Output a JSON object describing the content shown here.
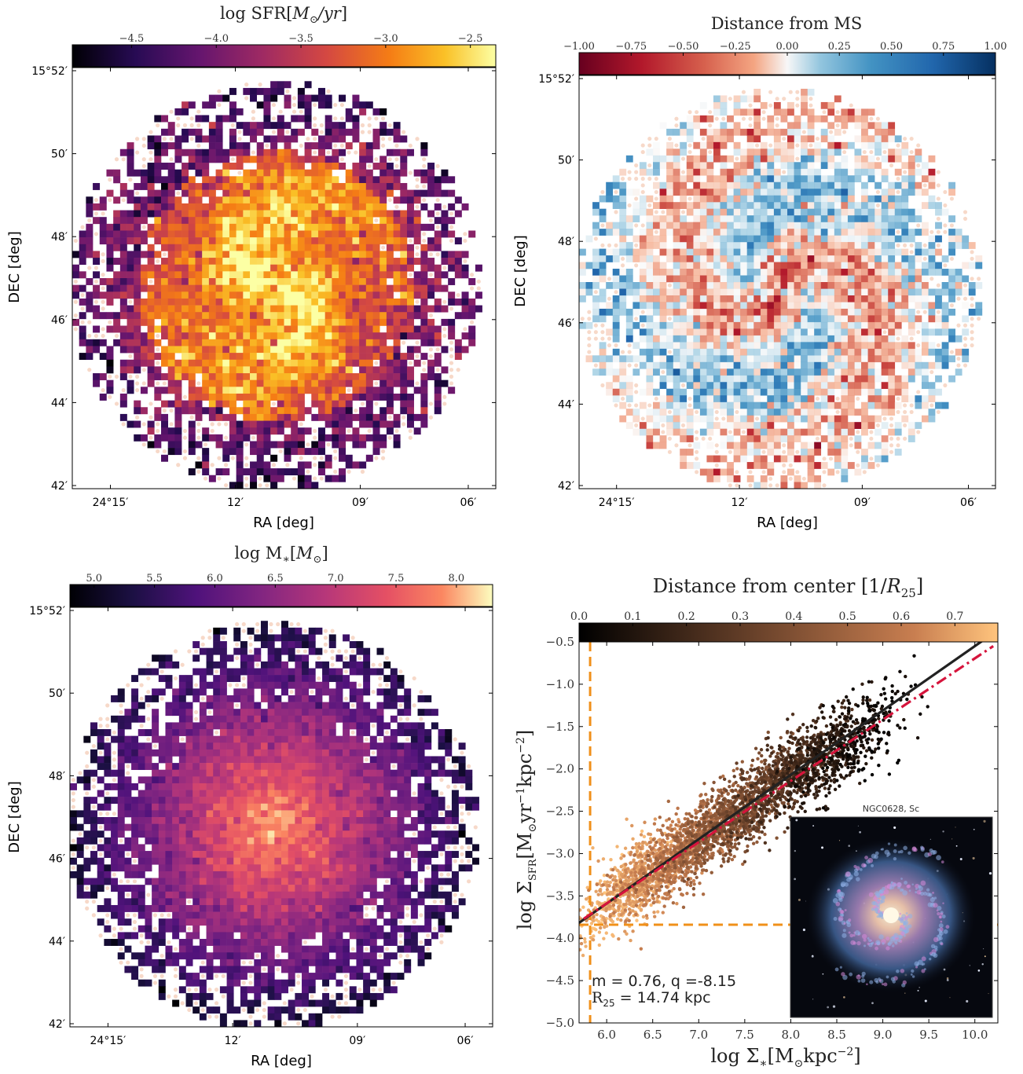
{
  "chart_data": [
    {
      "type": "heatmap",
      "title": "log SFR[M⊙/yr]",
      "xlabel": "RA [deg]",
      "ylabel": "DEC [deg]",
      "x_ticks": [
        "24°15′",
        "12′",
        "09′",
        "06′"
      ],
      "y_ticks": [
        "15°52′",
        "50′",
        "48′",
        "46′",
        "44′",
        "42′"
      ],
      "colorbar": {
        "colormap": "inferno",
        "range": [
          -4.85,
          -2.35
        ],
        "ticks": [
          "−4.5",
          "−4.0",
          "−3.5",
          "−3.0",
          "−2.5"
        ]
      }
    },
    {
      "type": "heatmap",
      "title": "Distance from MS",
      "xlabel": "RA [deg]",
      "ylabel": "DEC [deg]",
      "x_ticks": [
        "24°15′",
        "12′",
        "09′",
        "06′"
      ],
      "y_ticks": [
        "15°52′",
        "50′",
        "48′",
        "46′",
        "44′",
        "42′"
      ],
      "colorbar": {
        "colormap": "RdBu",
        "range": [
          -1.0,
          1.0
        ],
        "ticks": [
          "−1.00",
          "−0.75",
          "−0.50",
          "−0.25",
          "0.00",
          "0.25",
          "0.50",
          "0.75",
          "1.00"
        ]
      }
    },
    {
      "type": "heatmap",
      "title": "log M∗[M⊙]",
      "xlabel": "RA [deg]",
      "ylabel": "DEC [deg]",
      "x_ticks": [
        "24°15′",
        "12′",
        "09′",
        "06′"
      ],
      "y_ticks": [
        "15°52′",
        "50′",
        "48′",
        "46′",
        "44′",
        "42′"
      ],
      "colorbar": {
        "colormap": "magma",
        "range": [
          4.8,
          8.3
        ],
        "ticks": [
          "5.0",
          "5.5",
          "6.0",
          "6.5",
          "7.0",
          "7.5",
          "8.0"
        ]
      }
    },
    {
      "type": "scatter",
      "title": "Distance from center [1/R25]",
      "xlabel": "log Σ∗[M⊙kpc−2]",
      "ylabel": "log ΣSFR[M⊙yr−1kpc−2]",
      "xlim": [
        5.7,
        10.25
      ],
      "ylim": [
        -5.0,
        -0.5
      ],
      "x_ticks": [
        "6.0",
        "6.5",
        "7.0",
        "7.5",
        "8.0",
        "8.5",
        "9.0",
        "9.5",
        "10.0"
      ],
      "y_ticks": [
        "−0.5",
        "−1.0",
        "−1.5",
        "−2.0",
        "−2.5",
        "−3.0",
        "−3.5",
        "−4.0",
        "−4.5",
        "−5.0"
      ],
      "colorbar": {
        "colormap": "copper",
        "range": [
          0.0,
          0.78
        ],
        "ticks": [
          "0.0",
          "0.1",
          "0.2",
          "0.3",
          "0.4",
          "0.5",
          "0.6",
          "0.7"
        ]
      },
      "fit_line": {
        "slope": 0.76,
        "intercept": -8.15,
        "color": "#222222"
      },
      "ms_line": {
        "x": [
          5.75,
          10.2
        ],
        "y": [
          -3.77,
          -0.55
        ],
        "color": "#d6143c",
        "style": "dash-dot"
      },
      "thresholds": {
        "vertical_x": 5.82,
        "horizontal_y": -3.84,
        "color": "#f0901a"
      },
      "annotation": {
        "line1": "m = 0.76, q =-8.15",
        "line2_prefix": "R",
        "line2_sub": "25",
        "line2_suffix": " = 14.74 kpc"
      },
      "inset": {
        "title": "NGC0628, Sc"
      }
    }
  ]
}
